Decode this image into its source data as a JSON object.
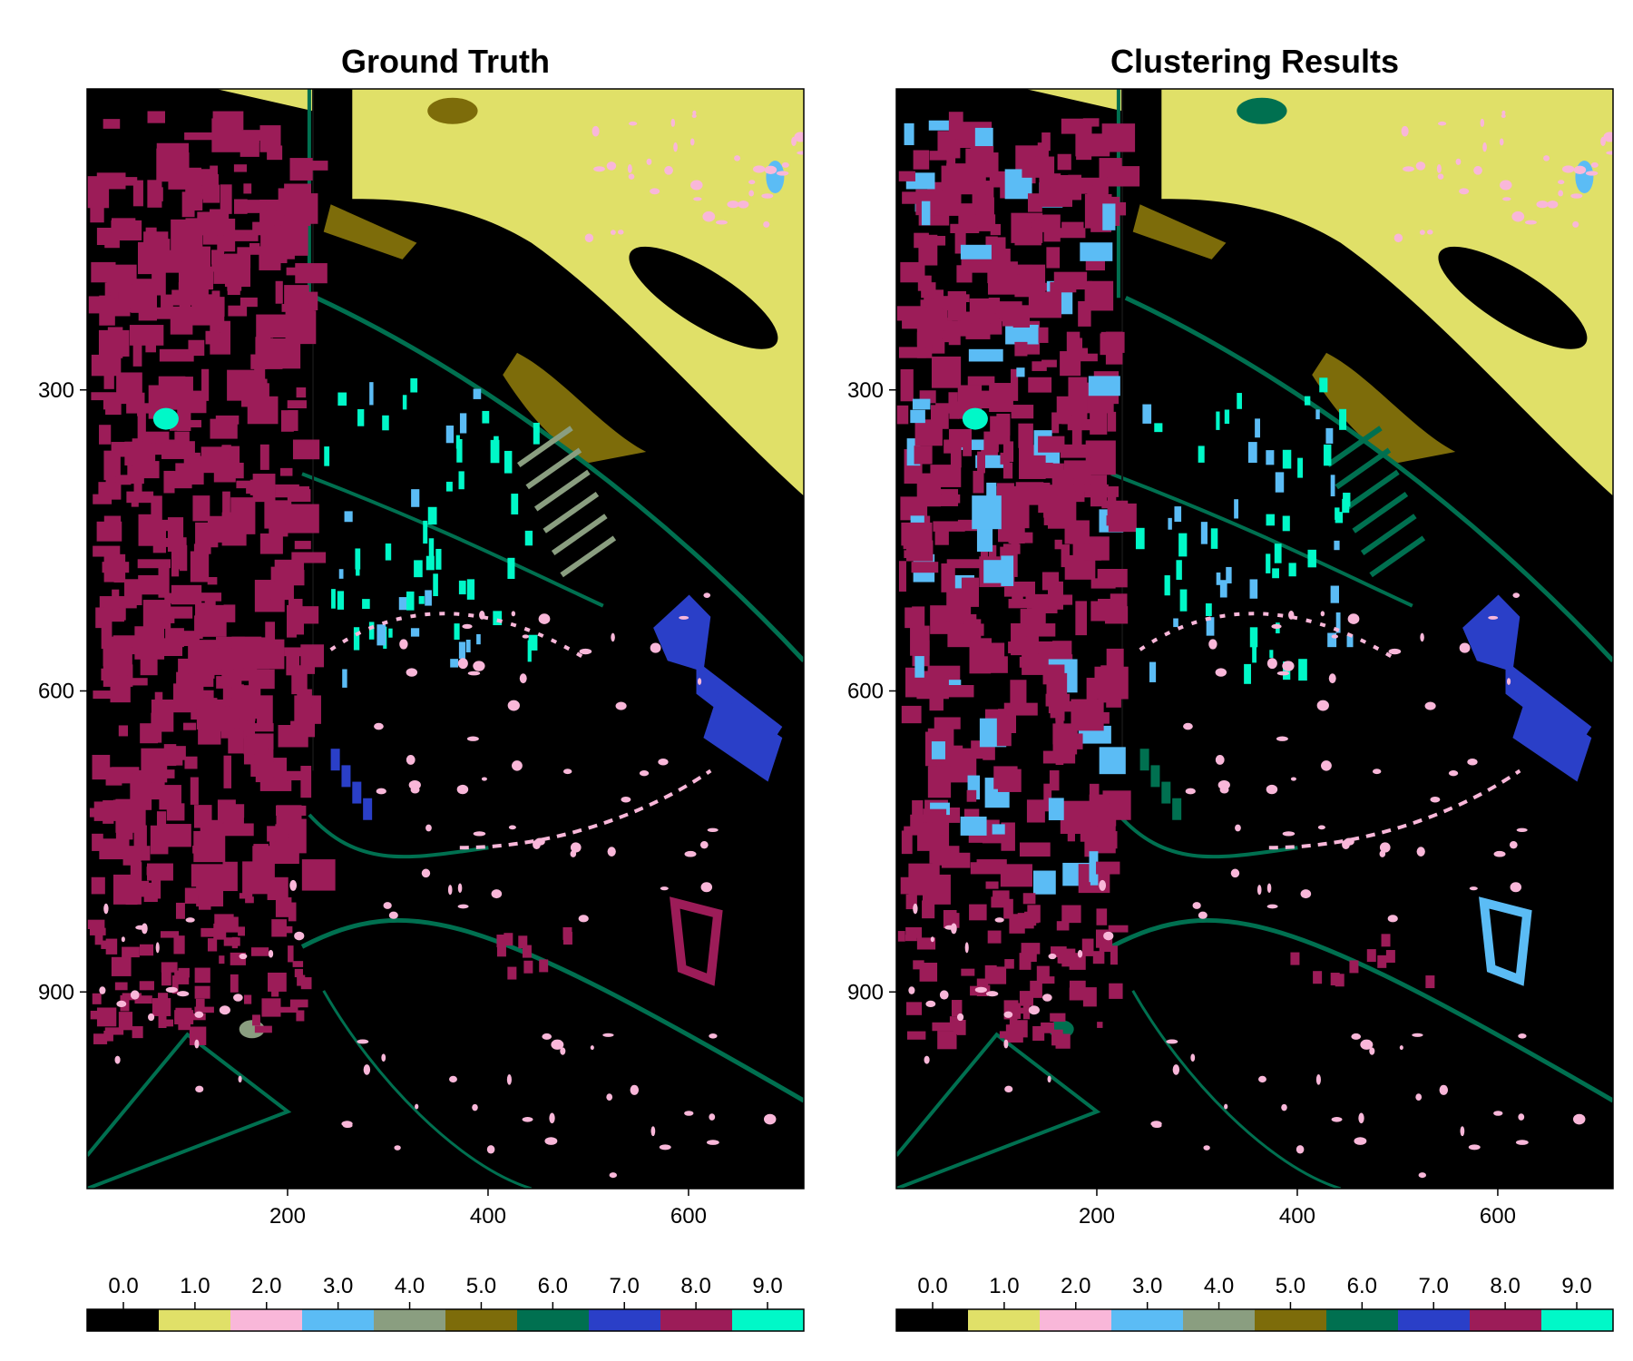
{
  "chart_data": [
    {
      "type": "heatmap",
      "title": "Ground Truth",
      "xlabel": "",
      "ylabel": "",
      "x_ticks": [
        200,
        400,
        600
      ],
      "y_ticks": [
        300,
        600,
        900
      ],
      "xlim": [
        0,
        715
      ],
      "ylim": [
        1096,
        0
      ],
      "colorbar": {
        "ticks": [
          "0.0",
          "1.0",
          "2.0",
          "3.0",
          "4.0",
          "5.0",
          "6.0",
          "7.0",
          "8.0",
          "9.0"
        ],
        "colors": [
          "#000000",
          "#e0e068",
          "#f9b7d9",
          "#5bbcf5",
          "#8a9e80",
          "#7d6c0a",
          "#007050",
          "#2a3fc8",
          "#9c1c58",
          "#00f8c8"
        ]
      }
    },
    {
      "type": "heatmap",
      "title": "Clustering Results",
      "xlabel": "",
      "ylabel": "",
      "x_ticks": [
        200,
        400,
        600
      ],
      "y_ticks": [
        300,
        600,
        900
      ],
      "xlim": [
        0,
        715
      ],
      "ylim": [
        1096,
        0
      ],
      "colorbar": {
        "ticks": [
          "0.0",
          "1.0",
          "2.0",
          "3.0",
          "4.0",
          "5.0",
          "6.0",
          "7.0",
          "8.0",
          "9.0"
        ],
        "colors": [
          "#000000",
          "#e0e068",
          "#f9b7d9",
          "#5bbcf5",
          "#8a9e80",
          "#7d6c0a",
          "#007050",
          "#2a3fc8",
          "#9c1c58",
          "#00f8c8"
        ]
      }
    }
  ]
}
